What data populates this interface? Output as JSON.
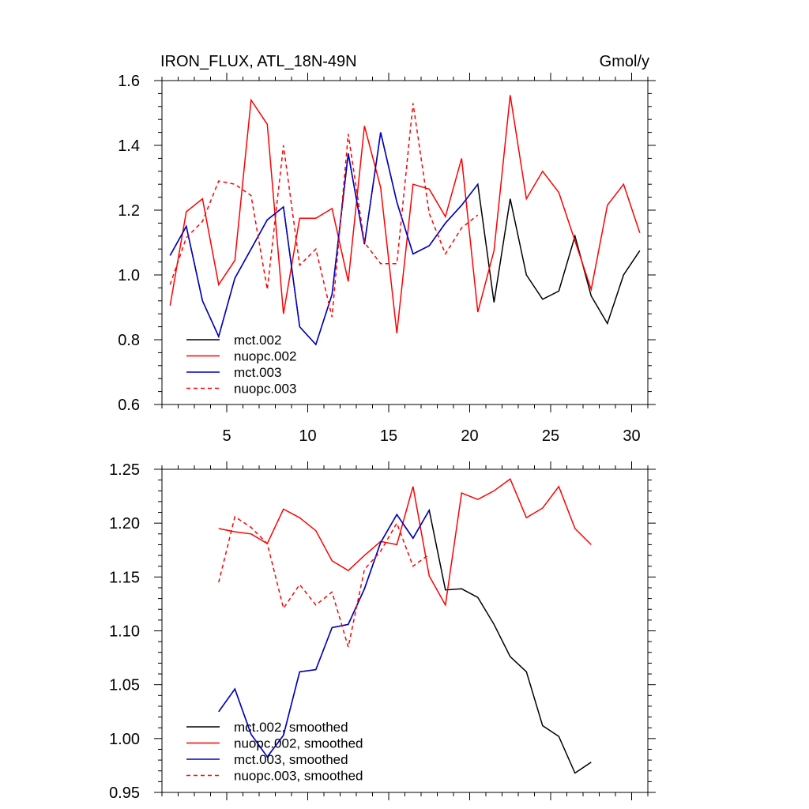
{
  "chart_data": [
    {
      "type": "line",
      "title_left": "IRON_FLUX, ATL_18N-49N",
      "title_right": "Gmol/y",
      "xlim": [
        1,
        31
      ],
      "ylim": [
        0.6,
        1.6
      ],
      "xticks": [
        5,
        10,
        15,
        20,
        25,
        30
      ],
      "xtick_labels": [
        "5",
        "10",
        "15",
        "20",
        "25",
        "30"
      ],
      "yticks": [
        0.6,
        0.8,
        1.0,
        1.2,
        1.4,
        1.6
      ],
      "ytick_labels": [
        "0.6",
        "0.8",
        "1.0",
        "1.2",
        "1.4",
        "1.6"
      ],
      "legend_position": "bottom-left",
      "series": [
        {
          "name": "mct.002",
          "color": "#000000",
          "dash": "solid",
          "x": [
            1.5,
            2.5,
            3.5,
            4.5,
            5.5,
            6.5,
            7.5,
            8.5,
            9.5,
            10.5,
            11.5,
            12.5,
            13.5,
            14.5,
            15.5,
            16.5,
            17.5,
            18.5,
            19.5,
            20.5,
            21.5,
            22.5,
            23.5,
            24.5,
            25.5,
            26.5,
            27.5,
            28.5,
            29.5,
            30.5
          ],
          "values": [
            1.06,
            1.15,
            0.92,
            0.81,
            0.99,
            1.08,
            1.17,
            1.21,
            0.84,
            0.785,
            0.94,
            1.375,
            1.095,
            1.44,
            1.225,
            1.065,
            1.09,
            1.16,
            1.215,
            1.28,
            0.915,
            1.235,
            1.0,
            0.925,
            0.95,
            1.12,
            0.935,
            0.85,
            1.0,
            1.075
          ]
        },
        {
          "name": "nuopc.002",
          "color": "#ff0000",
          "dash": "solid",
          "x": [
            1.5,
            2.5,
            3.5,
            4.5,
            5.5,
            6.5,
            7.5,
            8.5,
            9.5,
            10.5,
            11.5,
            12.5,
            13.5,
            14.5,
            15.5,
            16.5,
            17.5,
            18.5,
            19.5,
            20.5,
            21.5,
            22.5,
            23.5,
            24.5,
            25.5,
            26.5,
            27.5,
            28.5,
            29.5,
            30.5
          ],
          "values": [
            0.905,
            1.195,
            1.235,
            0.97,
            1.045,
            1.54,
            1.465,
            0.88,
            1.175,
            1.175,
            1.205,
            0.98,
            1.46,
            1.27,
            0.82,
            1.28,
            1.265,
            1.18,
            1.36,
            0.885,
            1.075,
            1.555,
            1.235,
            1.32,
            1.255,
            1.105,
            0.955,
            1.215,
            1.28,
            1.13
          ]
        },
        {
          "name": "mct.003",
          "color": "#0000cc",
          "dash": "solid",
          "x": [
            1.5,
            2.5,
            3.5,
            4.5,
            5.5,
            6.5,
            7.5,
            8.5,
            9.5,
            10.5,
            11.5,
            12.5,
            13.5,
            14.5,
            15.5,
            16.5,
            17.5,
            18.5,
            19.5,
            20.5
          ],
          "values": [
            1.06,
            1.15,
            0.92,
            0.81,
            0.99,
            1.08,
            1.17,
            1.21,
            0.84,
            0.785,
            0.94,
            1.375,
            1.095,
            1.44,
            1.225,
            1.065,
            1.09,
            1.16,
            1.215,
            1.28
          ]
        },
        {
          "name": "nuopc.003",
          "color": "#ff0000",
          "dash": "dashed",
          "x": [
            1.5,
            2.5,
            3.5,
            4.5,
            5.5,
            6.5,
            7.5,
            8.5,
            9.5,
            10.5,
            11.5,
            12.5,
            13.5,
            14.5,
            15.5,
            16.5,
            17.5,
            18.5,
            19.5,
            20.5
          ],
          "values": [
            0.97,
            1.115,
            1.165,
            1.29,
            1.28,
            1.245,
            0.955,
            1.4,
            1.03,
            1.08,
            0.87,
            1.435,
            1.1,
            1.035,
            1.035,
            1.53,
            1.19,
            1.065,
            1.145,
            1.185
          ]
        }
      ]
    },
    {
      "type": "line",
      "xlim": [
        1,
        31
      ],
      "ylim": [
        0.95,
        1.25
      ],
      "xticks": [
        5,
        10,
        15,
        20,
        25,
        30
      ],
      "yticks": [
        0.95,
        1.0,
        1.05,
        1.1,
        1.15,
        1.2,
        1.25
      ],
      "ytick_labels": [
        "0.95",
        "1.00",
        "1.05",
        "1.10",
        "1.15",
        "1.20",
        "1.25"
      ],
      "legend_position": "bottom-left",
      "series": [
        {
          "name": "mct.002, smoothed",
          "color": "#000000",
          "dash": "solid",
          "x": [
            4.5,
            5.5,
            6.5,
            7.5,
            8.5,
            9.5,
            10.5,
            11.5,
            12.5,
            13.5,
            14.5,
            15.5,
            16.5,
            17.5,
            18.5,
            19.5,
            20.5,
            21.5,
            22.5,
            23.5,
            24.5,
            25.5,
            26.5,
            27.5
          ],
          "values": [
            1.025,
            1.046,
            1.004,
            0.983,
            1.003,
            1.062,
            1.064,
            1.103,
            1.106,
            1.139,
            1.182,
            1.208,
            1.186,
            1.212,
            1.138,
            1.139,
            1.131,
            1.106,
            1.076,
            1.062,
            1.012,
            1.002,
            0.968,
            0.978
          ]
        },
        {
          "name": "nuopc.002, smoothed",
          "color": "#ff0000",
          "dash": "solid",
          "x": [
            4.5,
            5.5,
            6.5,
            7.5,
            8.5,
            9.5,
            10.5,
            11.5,
            12.5,
            13.5,
            14.5,
            15.5,
            16.5,
            17.5,
            18.5,
            19.5,
            20.5,
            21.5,
            22.5,
            23.5,
            24.5,
            25.5,
            26.5,
            27.5
          ],
          "values": [
            1.195,
            1.192,
            1.19,
            1.181,
            1.213,
            1.205,
            1.193,
            1.165,
            1.156,
            1.17,
            1.183,
            1.18,
            1.234,
            1.151,
            1.124,
            1.228,
            1.222,
            1.23,
            1.241,
            1.205,
            1.214,
            1.234,
            1.195,
            1.18
          ]
        },
        {
          "name": "mct.003, smoothed",
          "color": "#0000cc",
          "dash": "solid",
          "x": [
            4.5,
            5.5,
            6.5,
            7.5,
            8.5,
            9.5,
            10.5,
            11.5,
            12.5,
            13.5,
            14.5,
            15.5,
            16.5,
            17.5
          ],
          "values": [
            1.025,
            1.046,
            1.004,
            0.983,
            1.003,
            1.062,
            1.064,
            1.103,
            1.106,
            1.139,
            1.182,
            1.208,
            1.186,
            1.212
          ]
        },
        {
          "name": "nuopc.003, smoothed",
          "color": "#ff0000",
          "dash": "dashed",
          "x": [
            4.5,
            5.5,
            6.5,
            7.5,
            8.5,
            9.5,
            10.5,
            11.5,
            12.5,
            13.5,
            14.5,
            15.5,
            16.5,
            17.5
          ],
          "values": [
            1.145,
            1.206,
            1.196,
            1.181,
            1.121,
            1.143,
            1.124,
            1.136,
            1.085,
            1.157,
            1.174,
            1.2,
            1.16,
            1.171
          ]
        }
      ]
    }
  ]
}
